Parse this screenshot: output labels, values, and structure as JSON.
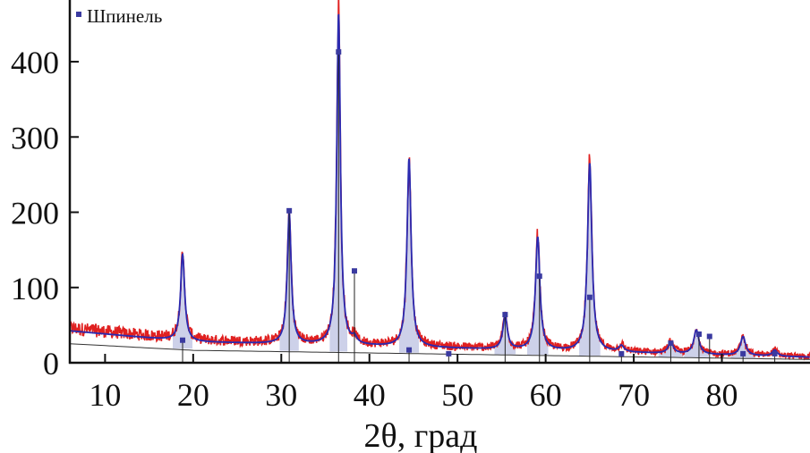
{
  "chart_data": {
    "type": "line",
    "title": "",
    "xlabel": "2θ, град",
    "ylabel": "",
    "xlim": [
      6,
      90
    ],
    "ylim": [
      0,
      480
    ],
    "x_ticks": [
      10,
      20,
      30,
      40,
      50,
      60,
      70,
      80
    ],
    "x_tick_labels": [
      "10",
      "20",
      "30",
      "40",
      "50",
      "60",
      "70",
      "80"
    ],
    "y_ticks": [
      0,
      100,
      200,
      300,
      400
    ],
    "y_tick_labels": [
      "0",
      "100",
      "200",
      "300",
      "400"
    ],
    "legend": {
      "position": "top-left",
      "entries": [
        {
          "label": "Шпинель",
          "color": "#3a3aa0",
          "marker": "square"
        }
      ]
    },
    "colors": {
      "observed": "#e02020",
      "calculated": "#2a2ab0",
      "phase_marker": "#3a3aa0",
      "peak_fill": "#b8bde0",
      "baseline": "#333333"
    },
    "background": {
      "start": 46,
      "mid_x": 20,
      "mid": 30,
      "end": 8
    },
    "peaks": [
      {
        "x": 18.8,
        "height": 115,
        "width": 0.28
      },
      {
        "x": 30.9,
        "height": 175,
        "width": 0.27
      },
      {
        "x": 36.5,
        "height": 440,
        "width": 0.25
      },
      {
        "x": 38.3,
        "height": 8,
        "width": 0.3
      },
      {
        "x": 44.5,
        "height": 250,
        "width": 0.28
      },
      {
        "x": 55.4,
        "height": 45,
        "width": 0.3
      },
      {
        "x": 59.1,
        "height": 150,
        "width": 0.3
      },
      {
        "x": 65.0,
        "height": 250,
        "width": 0.3
      },
      {
        "x": 68.6,
        "height": 8,
        "width": 0.35
      },
      {
        "x": 74.2,
        "height": 15,
        "width": 0.35
      },
      {
        "x": 77.1,
        "height": 32,
        "width": 0.35
      },
      {
        "x": 82.4,
        "height": 25,
        "width": 0.35
      },
      {
        "x": 86.0,
        "height": 8,
        "width": 0.35
      }
    ],
    "spinel_reflections": [
      {
        "x": 18.8,
        "intensity": 30
      },
      {
        "x": 30.9,
        "intensity": 202
      },
      {
        "x": 36.5,
        "intensity": 413
      },
      {
        "x": 38.3,
        "intensity": 122
      },
      {
        "x": 44.5,
        "intensity": 17
      },
      {
        "x": 49.0,
        "intensity": 12
      },
      {
        "x": 55.4,
        "intensity": 64
      },
      {
        "x": 59.3,
        "intensity": 115
      },
      {
        "x": 65.0,
        "intensity": 87
      },
      {
        "x": 68.6,
        "intensity": 12
      },
      {
        "x": 74.2,
        "intensity": 26
      },
      {
        "x": 77.4,
        "intensity": 38
      },
      {
        "x": 78.6,
        "intensity": 35
      },
      {
        "x": 82.4,
        "intensity": 12
      },
      {
        "x": 86.0,
        "intensity": 12
      }
    ]
  }
}
